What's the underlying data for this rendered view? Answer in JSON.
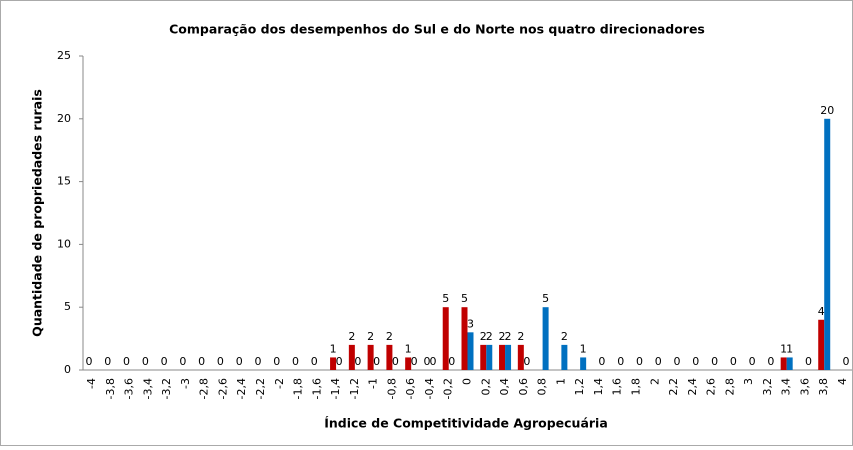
{
  "chart_data": {
    "type": "bar",
    "title": "Comparação dos desempenhos do Sul e do Norte nos quatro direcionadores",
    "x_label": "Índice de Competitividade Agropecuária",
    "y_label": "Quantidade de propriedades rurais",
    "categories": [
      "-4",
      "-3,8",
      "-3,6",
      "-3,4",
      "-3,2",
      "-3",
      "-2,8",
      "-2,6",
      "-2,4",
      "-2,2",
      "-2",
      "-1,8",
      "-1,6",
      "-1,4",
      "-1,2",
      "-1",
      "-0,8",
      "-0,6",
      "-0,4",
      "-0,2",
      "0",
      "0,2",
      "0,4",
      "0,6",
      "0,8",
      "1",
      "1,2",
      "1,4",
      "1,6",
      "1,8",
      "2",
      "2,2",
      "2,4",
      "2,6",
      "2,8",
      "3",
      "3,2",
      "3,4",
      "3,6",
      "3,8",
      "4"
    ],
    "series": [
      {
        "color": "#c00000",
        "values": [
          0,
          0,
          0,
          0,
          0,
          0,
          0,
          0,
          0,
          0,
          0,
          0,
          0,
          1,
          2,
          2,
          2,
          1,
          0,
          5,
          5,
          2,
          2,
          2,
          null,
          null,
          null,
          null,
          null,
          null,
          null,
          null,
          null,
          null,
          null,
          null,
          null,
          1,
          null,
          4,
          null
        ]
      },
      {
        "color": "#0070c0",
        "values": [
          null,
          null,
          null,
          null,
          null,
          null,
          null,
          null,
          null,
          null,
          null,
          null,
          null,
          0,
          0,
          0,
          0,
          0,
          0,
          0,
          3,
          2,
          2,
          0,
          5,
          2,
          1,
          0,
          0,
          0,
          0,
          0,
          0,
          0,
          0,
          0,
          0,
          1,
          0,
          20,
          0
        ]
      }
    ],
    "ylim": [
      0,
      25
    ],
    "yticks": [
      0,
      5,
      10,
      15,
      20,
      25
    ],
    "grid": false
  }
}
